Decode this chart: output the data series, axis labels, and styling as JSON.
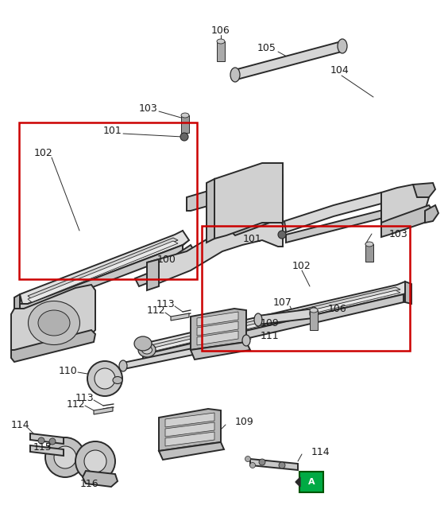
{
  "bg_color": "#ffffff",
  "line_color": "#2a2a2a",
  "red_box_color": "#cc0000",
  "green_box_color": "#00aa44",
  "label_color": "#1a1a1a",
  "fig_width": 5.64,
  "fig_height": 6.45,
  "dpi": 100
}
